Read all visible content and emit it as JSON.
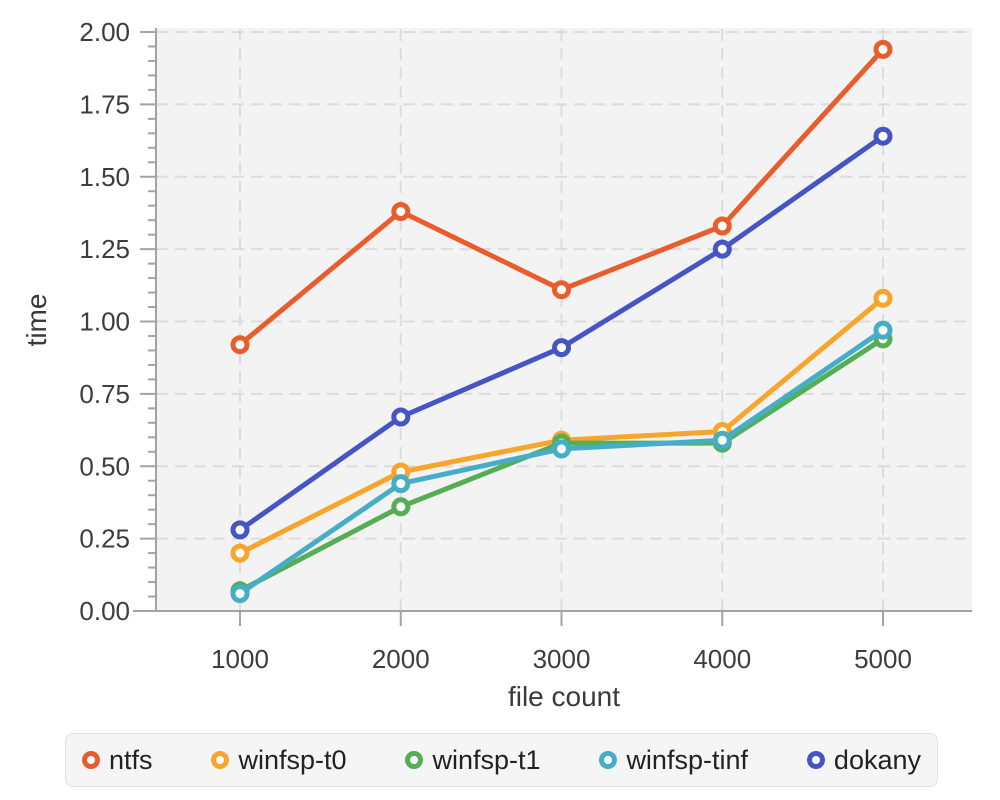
{
  "chart_data": {
    "type": "line",
    "x": [
      1000,
      2000,
      3000,
      4000,
      5000
    ],
    "series": [
      {
        "name": "ntfs",
        "color": "#E95D2D",
        "values": [
          0.92,
          1.38,
          1.11,
          1.33,
          1.94
        ]
      },
      {
        "name": "winfsp-t0",
        "color": "#F9A42B",
        "values": [
          0.2,
          0.48,
          0.59,
          0.62,
          1.08
        ]
      },
      {
        "name": "winfsp-t1",
        "color": "#55AE54",
        "values": [
          0.07,
          0.36,
          0.58,
          0.58,
          0.94
        ]
      },
      {
        "name": "winfsp-tinf",
        "color": "#45ADC6",
        "values": [
          0.06,
          0.44,
          0.56,
          0.59,
          0.97
        ]
      },
      {
        "name": "dokany",
        "color": "#4555C4",
        "values": [
          0.28,
          0.67,
          0.91,
          1.25,
          1.64
        ]
      }
    ],
    "xlabel": "file count",
    "ylabel": "time",
    "xticks": [
      1000,
      2000,
      3000,
      4000,
      5000
    ],
    "ylim": [
      0,
      2
    ],
    "ytick_step": 0.25,
    "y_minor_tick_step": 0.05,
    "grid": "dashed",
    "legend_position": "bottom",
    "legend_items": [
      "ntfs",
      "winfsp-t0",
      "winfsp-t1",
      "winfsp-tinf",
      "dokany"
    ]
  },
  "style": {
    "plot_bg": "#f3f3f3",
    "grid_color": "#dcdcdc",
    "axis_color": "#a3a3a3",
    "tick_label_color": "#3d3d3d",
    "axis_title_color": "#3a3a3a",
    "legend_bg": "#f5f5f5",
    "legend_border": "#e2e2e2",
    "legend_text_color": "#222222",
    "marker_fill": "#ffffff"
  }
}
